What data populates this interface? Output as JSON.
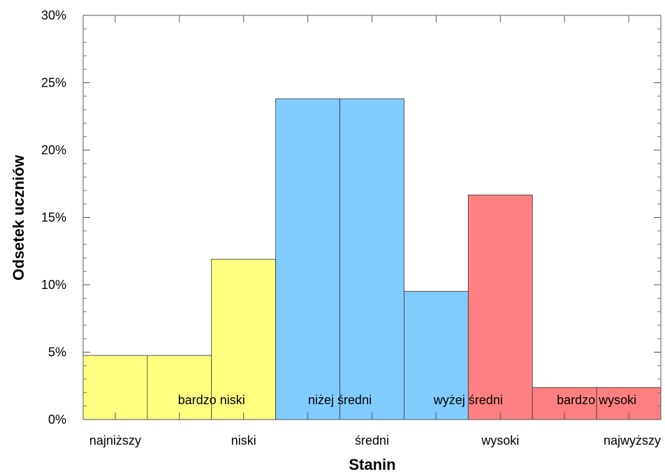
{
  "chart_data": {
    "type": "bar",
    "title": "",
    "xlabel": "Stanin",
    "ylabel": "Odsetek uczniów",
    "ylim": [
      0,
      30
    ],
    "y_ticks": [
      "0%",
      "5%",
      "10%",
      "15%",
      "20%",
      "25%",
      "30%"
    ],
    "x_tick_labels": [
      "najniższy",
      "niski",
      "średni",
      "wysoki",
      "najwyższy"
    ],
    "stanins": [
      1,
      2,
      3,
      4,
      5,
      6,
      7,
      8,
      9
    ],
    "values": [
      4.76,
      4.76,
      11.9,
      23.8,
      23.8,
      9.52,
      16.67,
      2.38,
      2.38
    ],
    "bar_colors": [
      "#ffff80",
      "#ffff80",
      "#ffff80",
      "#80ccff",
      "#80ccff",
      "#80ccff",
      "#ff8080",
      "#ff8080",
      "#ff8080"
    ],
    "group_labels": [
      "bardzo niski",
      "niżej średni",
      "wyżej średni",
      "bardzo wysoki"
    ],
    "grid": false,
    "legend": "none"
  }
}
